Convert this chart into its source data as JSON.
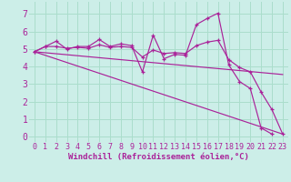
{
  "bg_color": "#cceee8",
  "line_color": "#aa2299",
  "grid_color": "#aaddcc",
  "xlabel": "Windchill (Refroidissement éolien,°C)",
  "xlabel_fontsize": 6.5,
  "ylabel_fontsize": 7,
  "tick_fontsize": 6,
  "xlim": [
    -0.5,
    23.5
  ],
  "ylim": [
    -0.3,
    7.7
  ],
  "yticks": [
    0,
    1,
    2,
    3,
    4,
    5,
    6,
    7
  ],
  "xticks": [
    0,
    1,
    2,
    3,
    4,
    5,
    6,
    7,
    8,
    9,
    10,
    11,
    12,
    13,
    14,
    15,
    16,
    17,
    18,
    19,
    20,
    21,
    22,
    23
  ],
  "series1_x": [
    0,
    1,
    2,
    3,
    4,
    5,
    6,
    7,
    8,
    9,
    10,
    11,
    12,
    13,
    14,
    15,
    16,
    17,
    18,
    19,
    20,
    21,
    22
  ],
  "series1_y": [
    4.85,
    5.15,
    5.45,
    5.0,
    5.15,
    5.15,
    5.55,
    5.15,
    5.3,
    5.2,
    3.7,
    5.8,
    4.45,
    4.7,
    4.65,
    6.4,
    6.75,
    7.05,
    4.1,
    3.15,
    2.75,
    0.5,
    0.15
  ],
  "series2_x": [
    0,
    1,
    2,
    3,
    4,
    5,
    6,
    7,
    8,
    9,
    10,
    11,
    12,
    13,
    14,
    15,
    16,
    17,
    18,
    19,
    20,
    21,
    22,
    23
  ],
  "series2_y": [
    4.85,
    5.15,
    5.15,
    5.05,
    5.1,
    5.05,
    5.25,
    5.1,
    5.15,
    5.1,
    4.55,
    4.95,
    4.75,
    4.8,
    4.75,
    5.2,
    5.4,
    5.5,
    4.4,
    3.95,
    3.7,
    2.55,
    1.55,
    0.15
  ],
  "series3_x": [
    0,
    23
  ],
  "series3_y": [
    4.85,
    0.15
  ],
  "series4_x": [
    0,
    23
  ],
  "series4_y": [
    4.85,
    3.55
  ]
}
